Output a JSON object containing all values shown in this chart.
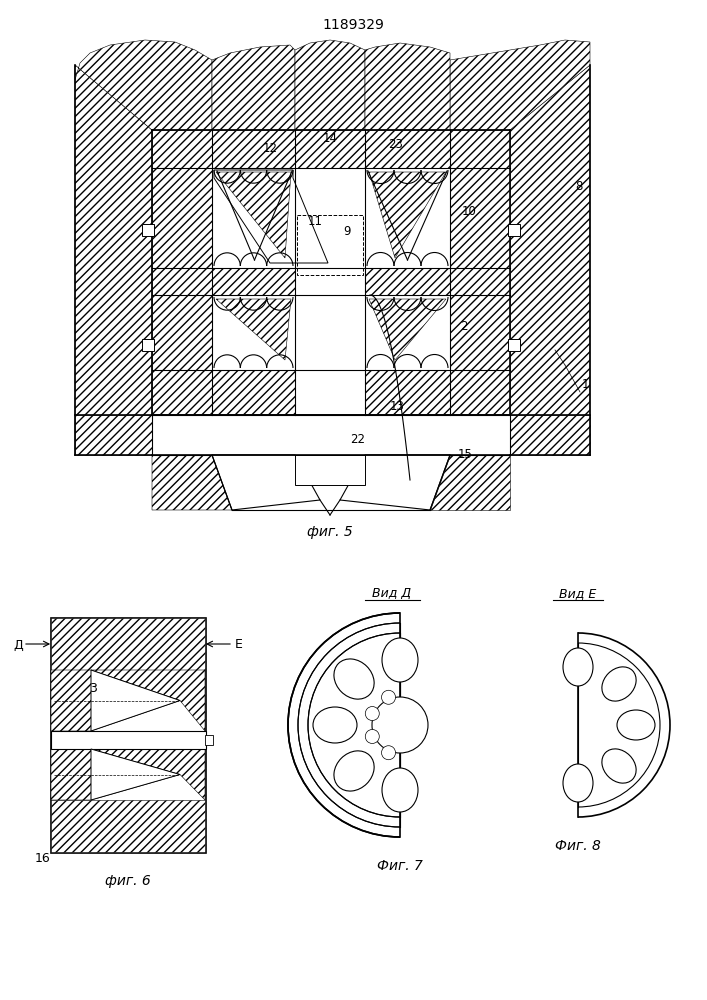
{
  "title": "1189329",
  "fig5_caption": "фиг. 5",
  "fig6_caption": "фиг. 6",
  "fig7_caption": "Фиг. 7",
  "fig8_caption": "Фиг. 8",
  "vid_d": "Вид Д",
  "vid_e": "Вид Е",
  "label_1": "1",
  "label_2": "2",
  "label_3": "3",
  "label_8": "8",
  "label_9": "9",
  "label_10": "10",
  "label_11": "11",
  "label_12": "12",
  "label_13": "13",
  "label_14": "14",
  "label_15": "15",
  "label_16": "16",
  "label_22": "22",
  "label_23": "23",
  "label_d": "Д",
  "label_e": "Е",
  "line_color": "#000000",
  "bg_color": "#ffffff"
}
